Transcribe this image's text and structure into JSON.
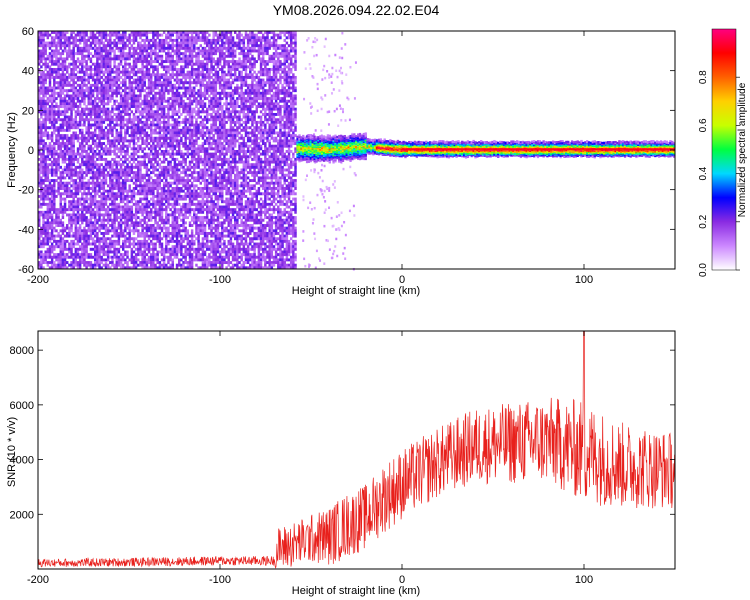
{
  "figure": {
    "title": "YM08.2026.094.22.02.E04"
  },
  "chart_data": [
    {
      "type": "heatmap",
      "title": "",
      "xlabel": "Height of straight line (km)",
      "ylabel": "Frequency (Hz)",
      "xlim": [
        -200,
        150
      ],
      "ylim": [
        -60,
        60
      ],
      "xticks": [
        -200,
        -100,
        0,
        100
      ],
      "yticks": [
        -60,
        -40,
        -20,
        0,
        20,
        40,
        60
      ],
      "colorbar": {
        "label": "Normalized spectral amplitude",
        "range": [
          0,
          1
        ],
        "ticks": [
          "0.0",
          "0.2",
          "0.4",
          "0.6",
          "0.8"
        ],
        "colormap": [
          "#ffffff",
          "#cc88ff",
          "#8a2be2",
          "#0000ff",
          "#00d8ff",
          "#00ff40",
          "#c8ff00",
          "#ffd000",
          "#ff6000",
          "#ff0000",
          "#ff0080"
        ]
      },
      "regions": [
        {
          "name": "noise",
          "x": [
            -200,
            -58
          ],
          "freq": [
            -60,
            60
          ],
          "amplitude": "0.1-0.2"
        },
        {
          "name": "signal-band",
          "x": [
            -58,
            150
          ],
          "freq_center": 0,
          "freq_halfwidth": 4,
          "peak_amplitude": 1.0
        }
      ],
      "ridge": {
        "x": [
          -58,
          -40,
          -20,
          0,
          20,
          50,
          80,
          100,
          120,
          150
        ],
        "freq": [
          1,
          0.5,
          2,
          0.5,
          0.5,
          0.5,
          0.5,
          0.5,
          0.5,
          0.5
        ]
      }
    },
    {
      "type": "line",
      "title": "",
      "xlabel": "Height of straight line (km)",
      "ylabel": "SNR (10 * v/v)",
      "xlim": [
        -200,
        150
      ],
      "ylim": [
        0,
        8700
      ],
      "xticks": [
        -200,
        -100,
        0,
        100
      ],
      "yticks": [
        2000,
        4000,
        6000,
        8000
      ],
      "series": [
        {
          "name": "SNR",
          "color": "#e8201c",
          "envelope_x": [
            -200,
            -150,
            -100,
            -70,
            -69,
            -50,
            -40,
            -30,
            -20,
            -10,
            0,
            20,
            40,
            60,
            80,
            100,
            120,
            150
          ],
          "envelope_mean": [
            220,
            250,
            300,
            300,
            700,
            1100,
            1200,
            1600,
            1900,
            2600,
            3100,
            3900,
            4500,
            4600,
            4700,
            4300,
            3800,
            3600
          ],
          "envelope_spread": [
            150,
            160,
            170,
            180,
            800,
            900,
            1100,
            1200,
            1200,
            1300,
            1300,
            1300,
            1400,
            1500,
            1600,
            1900,
            1600,
            1400
          ],
          "peak": {
            "x": 100,
            "y": 8700
          }
        }
      ]
    }
  ]
}
